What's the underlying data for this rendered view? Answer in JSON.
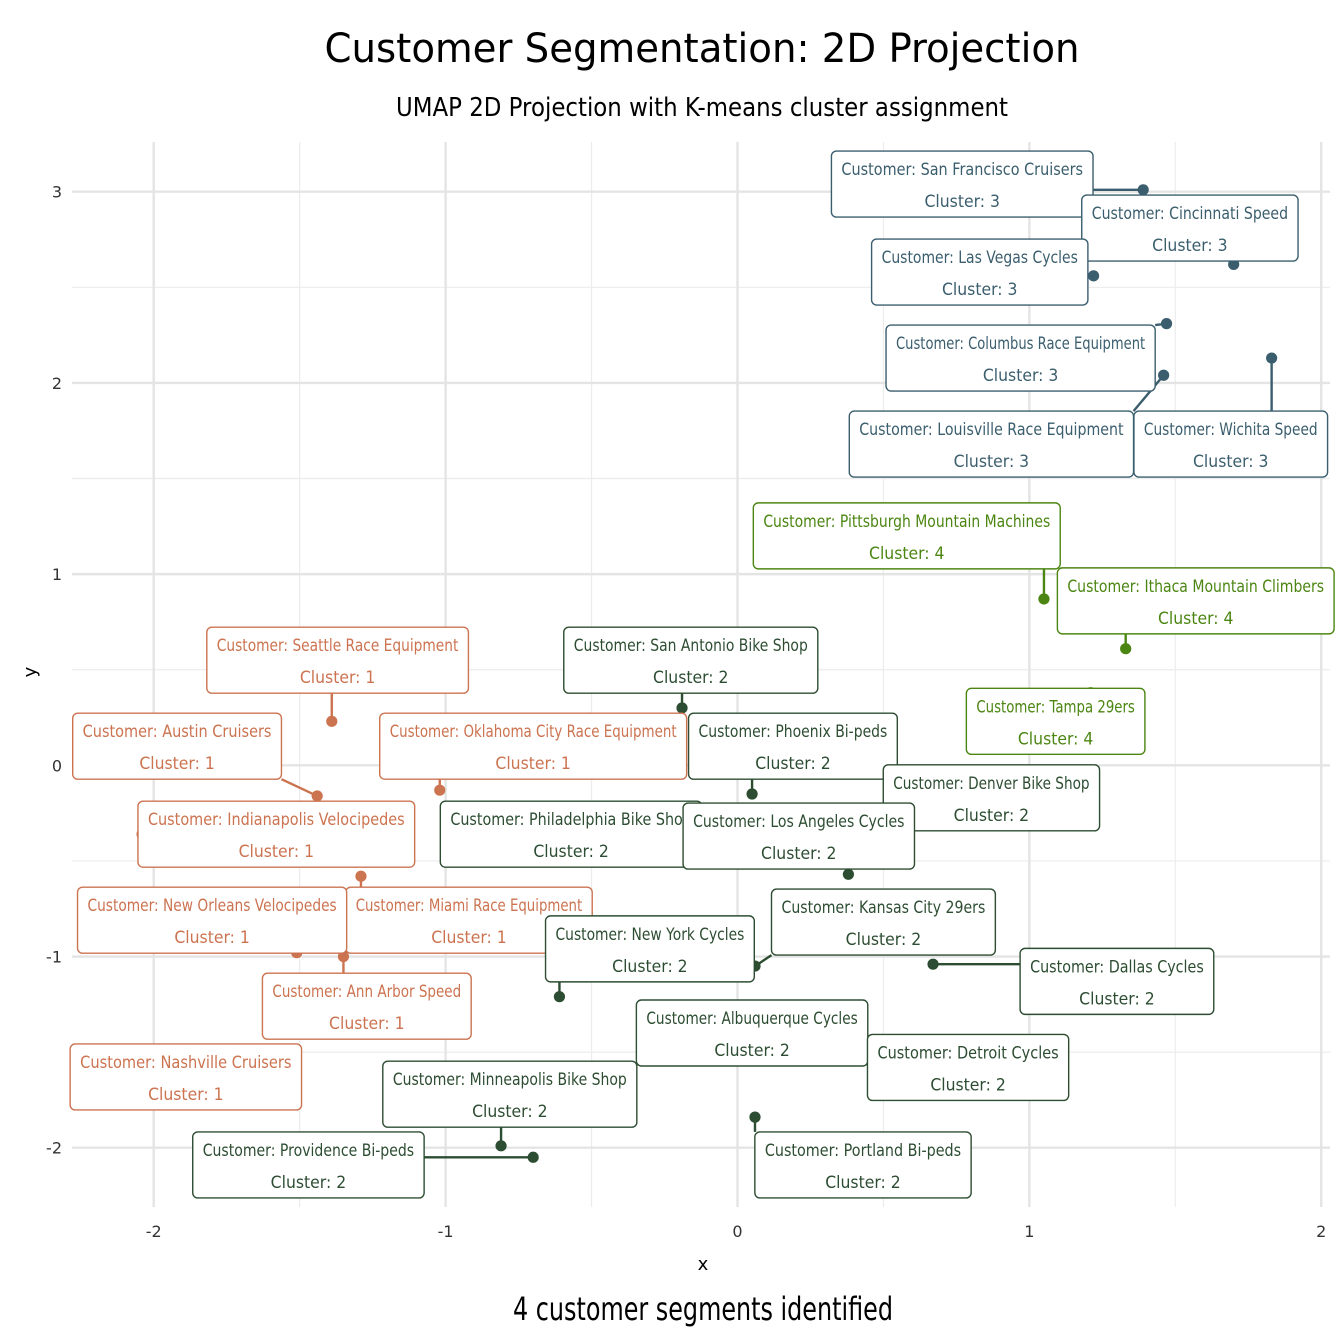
{
  "chart_data": {
    "type": "scatter",
    "title": "Customer Segmentation: 2D Projection",
    "subtitle": "UMAP 2D Projection with K-means cluster assignment",
    "caption": "4 customer segments identified",
    "xlabel": "x",
    "ylabel": "y",
    "xlim": [
      -2.28,
      2.03
    ],
    "ylim": [
      -2.31,
      3.26
    ],
    "xticks": [
      -2,
      -1,
      0,
      1,
      2
    ],
    "yticks": [
      -2,
      -1,
      0,
      1,
      2,
      3
    ],
    "grid": true,
    "legend": "none",
    "cluster_colors": {
      "1": "#cc7350",
      "2": "#2d4d32",
      "3": "#3b5e6e",
      "4": "#4c8612"
    },
    "points": [
      {
        "name": "San Francisco Cruisers",
        "cluster": 3,
        "x": 1.39,
        "y": 3.01,
        "lx": 0.77,
        "ly": 3.04,
        "label": "Customer: San Francisco Cruisers",
        "cluster_label": "Cluster: 3"
      },
      {
        "name": "Cincinnati Speed",
        "cluster": 3,
        "x": 1.7,
        "y": 2.62,
        "lx": 1.55,
        "ly": 2.81,
        "label": "Customer: Cincinnati Speed",
        "cluster_label": "Cluster: 3"
      },
      {
        "name": "Las Vegas Cycles",
        "cluster": 3,
        "x": 1.22,
        "y": 2.56,
        "lx": 0.83,
        "ly": 2.58,
        "label": "Customer: Las Vegas Cycles",
        "cluster_label": "Cluster: 3"
      },
      {
        "name": "Columbus Race Equipment",
        "cluster": 3,
        "x": 1.47,
        "y": 2.31,
        "lx": 0.97,
        "ly": 2.13,
        "label": "Customer: Columbus Race Equipment",
        "cluster_label": "Cluster: 3"
      },
      {
        "name": "Louisville Race Equipment",
        "cluster": 3,
        "x": 1.46,
        "y": 2.04,
        "lx": 0.87,
        "ly": 1.68,
        "label": "Customer: Louisville Race Equipment",
        "cluster_label": "Cluster: 3"
      },
      {
        "name": "Wichita Speed",
        "cluster": 3,
        "x": 1.83,
        "y": 2.13,
        "lx": 1.69,
        "ly": 1.68,
        "label": "Customer: Wichita Speed",
        "cluster_label": "Cluster: 3"
      },
      {
        "name": "Pittsburgh Mountain Machines",
        "cluster": 4,
        "x": 1.05,
        "y": 0.87,
        "lx": 0.58,
        "ly": 1.2,
        "label": "Customer: Pittsburgh Mountain Machines",
        "cluster_label": "Cluster: 4"
      },
      {
        "name": "Ithaca Mountain Climbers",
        "cluster": 4,
        "x": 1.33,
        "y": 0.61,
        "lx": 1.57,
        "ly": 0.86,
        "label": "Customer: Ithaca Mountain Climbers",
        "cluster_label": "Cluster: 4"
      },
      {
        "name": "Tampa 29ers",
        "cluster": 4,
        "x": 1.21,
        "y": 0.38,
        "lx": 1.09,
        "ly": 0.23,
        "label": "Customer: Tampa 29ers",
        "cluster_label": "Cluster: 4"
      },
      {
        "name": "Seattle Race Equipment",
        "cluster": 1,
        "x": -1.39,
        "y": 0.23,
        "lx": -1.37,
        "ly": 0.55,
        "label": "Customer: Seattle Race Equipment",
        "cluster_label": "Cluster: 1"
      },
      {
        "name": "Austin Cruisers",
        "cluster": 1,
        "x": -1.44,
        "y": -0.16,
        "lx": -1.92,
        "ly": 0.1,
        "label": "Customer: Austin Cruisers",
        "cluster_label": "Cluster: 1"
      },
      {
        "name": "Oklahoma City Race Equipment",
        "cluster": 1,
        "x": -1.02,
        "y": -0.13,
        "lx": -0.7,
        "ly": 0.1,
        "label": "Customer: Oklahoma City Race Equipment",
        "cluster_label": "Cluster: 1"
      },
      {
        "name": "Indianapolis Velocipedes",
        "cluster": 1,
        "x": -2.04,
        "y": -0.36,
        "lx": -1.58,
        "ly": -0.36,
        "label": "Customer: Indianapolis Velocipedes",
        "cluster_label": "Cluster: 1"
      },
      {
        "name": "Miami Race Equipment",
        "cluster": 1,
        "x": -1.29,
        "y": -0.58,
        "lx": -0.92,
        "ly": -0.81,
        "label": "Customer: Miami Race Equipment",
        "cluster_label": "Cluster: 1"
      },
      {
        "name": "New Orleans Velocipedes",
        "cluster": 1,
        "x": -1.51,
        "y": -0.98,
        "lx": -1.8,
        "ly": -0.81,
        "label": "Customer: New Orleans Velocipedes",
        "cluster_label": "Cluster: 1"
      },
      {
        "name": "Ann Arbor Speed",
        "cluster": 1,
        "x": -1.35,
        "y": -1.0,
        "lx": -1.27,
        "ly": -1.26,
        "label": "Customer: Ann Arbor Speed",
        "cluster_label": "Cluster: 1"
      },
      {
        "name": "Nashville Cruisers",
        "cluster": 1,
        "x": -2.05,
        "y": -1.55,
        "lx": -1.89,
        "ly": -1.63,
        "label": "Customer: Nashville Cruisers",
        "cluster_label": "Cluster: 1"
      },
      {
        "name": "San Antonio Bike Shop",
        "cluster": 2,
        "x": -0.19,
        "y": 0.3,
        "lx": -0.16,
        "ly": 0.55,
        "label": "Customer: San Antonio Bike Shop",
        "cluster_label": "Cluster: 2"
      },
      {
        "name": "Phoenix Bi-peds",
        "cluster": 2,
        "x": 0.05,
        "y": -0.15,
        "lx": 0.19,
        "ly": 0.1,
        "label": "Customer: Phoenix Bi-peds",
        "cluster_label": "Cluster: 2"
      },
      {
        "name": "Denver Bike Shop",
        "cluster": 2,
        "x": 0.73,
        "y": -0.26,
        "lx": 0.87,
        "ly": -0.17,
        "label": "Customer: Denver Bike Shop",
        "cluster_label": "Cluster: 2"
      },
      {
        "name": "Philadelphia Bike Shop",
        "cluster": 2,
        "x": -0.63,
        "y": -0.46,
        "lx": -0.57,
        "ly": -0.36,
        "label": "Customer: Philadelphia Bike Shop",
        "cluster_label": "Cluster: 2"
      },
      {
        "name": "Los Angeles Cycles",
        "cluster": 2,
        "x": 0.38,
        "y": -0.57,
        "lx": 0.21,
        "ly": -0.37,
        "label": "Customer: Los Angeles Cycles",
        "cluster_label": "Cluster: 2"
      },
      {
        "name": "Kansas City 29ers",
        "cluster": 2,
        "x": 0.06,
        "y": -1.05,
        "lx": 0.5,
        "ly": -0.82,
        "label": "Customer: Kansas City 29ers",
        "cluster_label": "Cluster: 2"
      },
      {
        "name": "New York Cycles",
        "cluster": 2,
        "x": -0.61,
        "y": -1.21,
        "lx": -0.3,
        "ly": -0.96,
        "label": "Customer: New York Cycles",
        "cluster_label": "Cluster: 2"
      },
      {
        "name": "Dallas Cycles",
        "cluster": 2,
        "x": 0.67,
        "y": -1.04,
        "lx": 1.3,
        "ly": -1.13,
        "label": "Customer: Dallas Cycles",
        "cluster_label": "Cluster: 2"
      },
      {
        "name": "Albuquerque Cycles",
        "cluster": 2,
        "x": -0.37,
        "y": -1.61,
        "lx": 0.05,
        "ly": -1.4,
        "label": "Customer: Albuquerque Cycles",
        "cluster_label": "Cluster: 2"
      },
      {
        "name": "Detroit Cycles",
        "cluster": 2,
        "x": 0.44,
        "y": -1.51,
        "lx": 0.79,
        "ly": -1.58,
        "label": "Customer: Detroit Cycles",
        "cluster_label": "Cluster: 2"
      },
      {
        "name": "Minneapolis Bike Shop",
        "cluster": 2,
        "x": -0.81,
        "y": -1.99,
        "lx": -0.78,
        "ly": -1.72,
        "label": "Customer: Minneapolis Bike Shop",
        "cluster_label": "Cluster: 2"
      },
      {
        "name": "Providence Bi-peds",
        "cluster": 2,
        "x": -0.7,
        "y": -2.05,
        "lx": -1.47,
        "ly": -2.09,
        "label": "Customer: Providence Bi-peds",
        "cluster_label": "Cluster: 2"
      },
      {
        "name": "Portland Bi-peds",
        "cluster": 2,
        "x": 0.06,
        "y": -1.84,
        "lx": 0.43,
        "ly": -2.09,
        "label": "Customer: Portland Bi-peds",
        "cluster_label": "Cluster: 2"
      }
    ]
  }
}
